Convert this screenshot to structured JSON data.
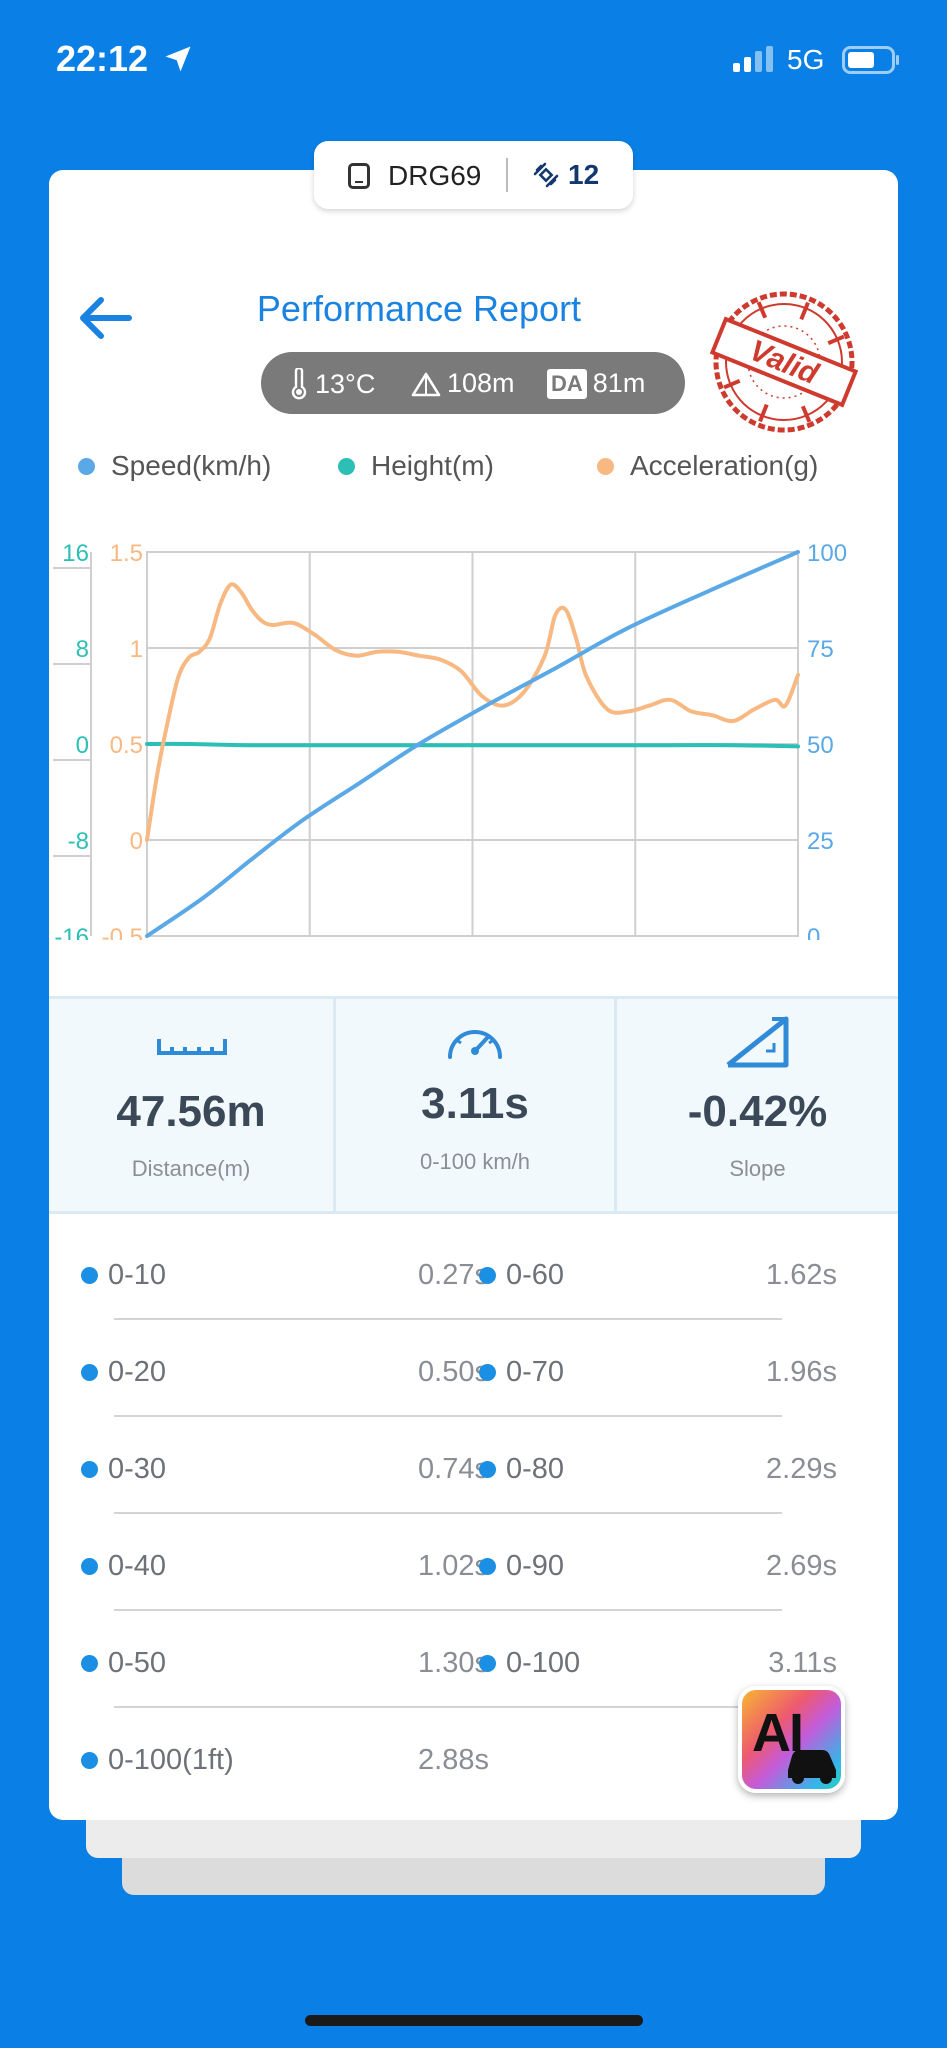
{
  "status_bar": {
    "time": "22:12",
    "network": "5G"
  },
  "device": {
    "name": "DRG69",
    "satellites": "12"
  },
  "header": {
    "title": "Performance Report",
    "stamp_text": "Valid"
  },
  "conditions": {
    "temperature": "13°C",
    "altitude": "108m",
    "da_label": "DA",
    "density_altitude": "81m"
  },
  "legend": [
    {
      "label": "Speed(km/h)",
      "color": "#5aa9e6"
    },
    {
      "label": "Height(m)",
      "color": "#2bbfb6"
    },
    {
      "label": "Acceleration(g)",
      "color": "#f7b882"
    }
  ],
  "chart_data": {
    "type": "line",
    "x_range": [
      0,
      3.11
    ],
    "left_axis_height": {
      "ticks": [
        "16",
        "8",
        "0",
        "-8",
        "-16"
      ],
      "range": [
        -16,
        16
      ],
      "color": "#2bbfb6"
    },
    "left_axis_accel": {
      "ticks": [
        "1.5",
        "1",
        "0.5",
        "0",
        "-0.5"
      ],
      "range": [
        -0.5,
        1.5
      ],
      "color": "#f7b882"
    },
    "right_axis_speed": {
      "ticks": [
        "100",
        "75",
        "50",
        "25",
        "0"
      ],
      "range": [
        0,
        100
      ],
      "color": "#5aa9e6"
    },
    "grid": true,
    "series": [
      {
        "name": "Speed(km/h)",
        "axis": "right",
        "color": "#5aa9e6",
        "points": [
          [
            0,
            0
          ],
          [
            0.27,
            10
          ],
          [
            0.5,
            20
          ],
          [
            0.74,
            30
          ],
          [
            1.02,
            40
          ],
          [
            1.3,
            50
          ],
          [
            1.62,
            60
          ],
          [
            1.96,
            70
          ],
          [
            2.29,
            80
          ],
          [
            2.69,
            90
          ],
          [
            3.11,
            100
          ]
        ]
      },
      {
        "name": "Height(m)",
        "axis": "left_height",
        "color": "#2bbfb6",
        "points": [
          [
            0,
            0
          ],
          [
            0.2,
            0
          ],
          [
            0.5,
            -0.1
          ],
          [
            1.0,
            -0.1
          ],
          [
            1.5,
            -0.1
          ],
          [
            2.0,
            -0.1
          ],
          [
            2.5,
            -0.1
          ],
          [
            2.8,
            -0.1
          ],
          [
            3.11,
            -0.2
          ]
        ]
      },
      {
        "name": "Acceleration(g)",
        "axis": "left_accel",
        "color": "#f7b882",
        "points": [
          [
            0,
            0
          ],
          [
            0.05,
            0.35
          ],
          [
            0.1,
            0.62
          ],
          [
            0.15,
            0.85
          ],
          [
            0.2,
            0.95
          ],
          [
            0.25,
            0.98
          ],
          [
            0.3,
            1.05
          ],
          [
            0.35,
            1.23
          ],
          [
            0.4,
            1.33
          ],
          [
            0.45,
            1.29
          ],
          [
            0.5,
            1.2
          ],
          [
            0.55,
            1.14
          ],
          [
            0.6,
            1.12
          ],
          [
            0.7,
            1.13
          ],
          [
            0.8,
            1.07
          ],
          [
            0.9,
            0.99
          ],
          [
            1.0,
            0.96
          ],
          [
            1.1,
            0.98
          ],
          [
            1.2,
            0.98
          ],
          [
            1.3,
            0.96
          ],
          [
            1.4,
            0.94
          ],
          [
            1.5,
            0.88
          ],
          [
            1.6,
            0.75
          ],
          [
            1.7,
            0.7
          ],
          [
            1.8,
            0.77
          ],
          [
            1.9,
            0.96
          ],
          [
            1.95,
            1.17
          ],
          [
            2.0,
            1.2
          ],
          [
            2.05,
            1.05
          ],
          [
            2.1,
            0.85
          ],
          [
            2.2,
            0.68
          ],
          [
            2.3,
            0.67
          ],
          [
            2.4,
            0.7
          ],
          [
            2.5,
            0.73
          ],
          [
            2.6,
            0.67
          ],
          [
            2.7,
            0.65
          ],
          [
            2.8,
            0.62
          ],
          [
            2.9,
            0.68
          ],
          [
            3.0,
            0.73
          ],
          [
            3.05,
            0.7
          ],
          [
            3.11,
            0.86
          ]
        ]
      }
    ]
  },
  "stats": [
    {
      "value": "47.56m",
      "label": "Distance(m)"
    },
    {
      "value": "3.11s",
      "label": "0-100 km/h"
    },
    {
      "value": "-0.42%",
      "label": "Slope"
    }
  ],
  "splits": [
    [
      {
        "label": "0-10",
        "value": "0.27s"
      },
      {
        "label": "0-60",
        "value": "1.62s"
      }
    ],
    [
      {
        "label": "0-20",
        "value": "0.50s"
      },
      {
        "label": "0-70",
        "value": "1.96s"
      }
    ],
    [
      {
        "label": "0-30",
        "value": "0.74s"
      },
      {
        "label": "0-80",
        "value": "2.29s"
      }
    ],
    [
      {
        "label": "0-40",
        "value": "1.02s"
      },
      {
        "label": "0-90",
        "value": "2.69s"
      }
    ],
    [
      {
        "label": "0-50",
        "value": "1.30s"
      },
      {
        "label": "0-100",
        "value": "3.11s"
      }
    ],
    [
      {
        "label": "0-100(1ft)",
        "value": "2.88s"
      }
    ]
  ],
  "ai_button": {
    "label": "AI"
  }
}
